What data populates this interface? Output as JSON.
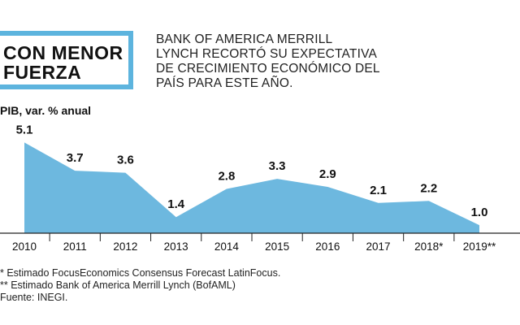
{
  "header": {
    "title_lines": [
      "CON MENOR",
      "FUERZA"
    ],
    "subtitle_lines": [
      "BANK OF AMERICA MERRILL",
      "LYNCH RECORTÓ SU EXPECTATIVA",
      "DE CRECIMIENTO ECONÓMICO DEL",
      "PAÍS PARA ESTE AÑO."
    ]
  },
  "colors": {
    "accent": "#5db4de",
    "area_fill": "#6db8df",
    "text": "#1a1a1a"
  },
  "chart_data": {
    "type": "area",
    "title": "CON MENOR FUERZA",
    "ylabel": "PIB, var. % anual",
    "xlabel": "",
    "categories": [
      "2010",
      "2011",
      "2012",
      "2013",
      "2014",
      "2015",
      "2016",
      "2017",
      "2018*",
      "2019**"
    ],
    "values": [
      5.1,
      3.7,
      3.6,
      1.4,
      2.8,
      3.3,
      2.9,
      2.1,
      2.2,
      1.0
    ],
    "data_labels": [
      "5.1",
      "3.7",
      "3.6",
      "1.4",
      "2.8",
      "3.3",
      "2.9",
      "2.1",
      "2.2",
      "1.0"
    ],
    "ylim": [
      0.6,
      5.4
    ],
    "grid": false
  },
  "footnotes": [
    "* Estimado FocusEconomics Consensus Forecast LatinFocus.",
    "** Estimado Bank of America Merrill Lynch (BofAML)",
    "Fuente: INEGI."
  ]
}
